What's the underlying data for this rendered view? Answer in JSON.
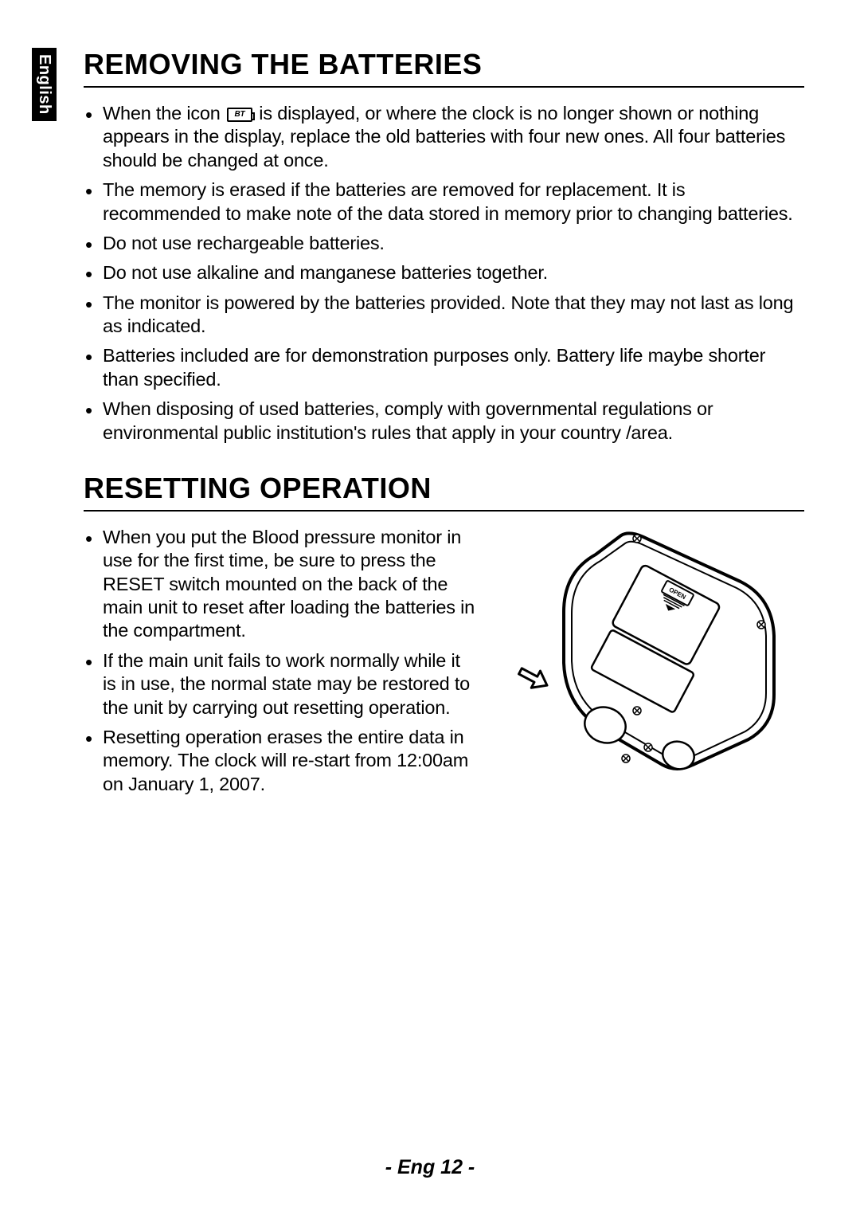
{
  "language_tab": "English",
  "section1": {
    "title": "REMOVING THE BATTERIES",
    "bullets": [
      {
        "pre": "When the icon ",
        "hasIcon": true,
        "iconText": "BT",
        "post": " is displayed, or where the clock is no longer shown or nothing appears in the display, replace the old batteries with four new ones. All four batteries should be changed at once."
      },
      {
        "pre": "The memory is erased if the batteries are removed for replacement. It is recommended to make note of the data stored in memory prior to changing batteries.",
        "hasIcon": false
      },
      {
        "pre": "Do not use rechargeable batteries.",
        "hasIcon": false
      },
      {
        "pre": "Do not use alkaline and manganese batteries together.",
        "hasIcon": false
      },
      {
        "pre": "The monitor is powered by the batteries provided. Note that they may not last as long as indicated.",
        "hasIcon": false
      },
      {
        "pre": "Batteries included are for demonstration purposes only. Battery life maybe shorter than specified.",
        "hasIcon": false
      },
      {
        "pre": "When disposing of used batteries, comply with governmental regulations or environmental public institution's rules that apply in your country /area.",
        "hasIcon": false
      }
    ]
  },
  "section2": {
    "title": "RESETTING OPERATION",
    "bullets": [
      {
        "pre": "When you put the Blood pressure monitor in use for the first time, be sure to press the RESET switch mounted on the back of the main unit to reset after loading the batteries in the compartment.",
        "hasIcon": false
      },
      {
        "pre": "If the main unit fails to work normally while it is in use, the normal state may be restored to the unit by carrying out resetting operation.",
        "hasIcon": false
      },
      {
        "pre": "Resetting operation erases the entire data in memory. The clock will re-start from 12:00am on January 1, 2007.",
        "hasIcon": false
      }
    ],
    "illustration_label": "OPEN"
  },
  "page_number": "- Eng 12 -",
  "colors": {
    "text": "#000000",
    "background": "#ffffff",
    "tab_bg": "#000000",
    "tab_text": "#ffffff"
  },
  "typography": {
    "heading_fontsize": 36,
    "body_fontsize": 23.5,
    "pagenum_fontsize": 25
  }
}
